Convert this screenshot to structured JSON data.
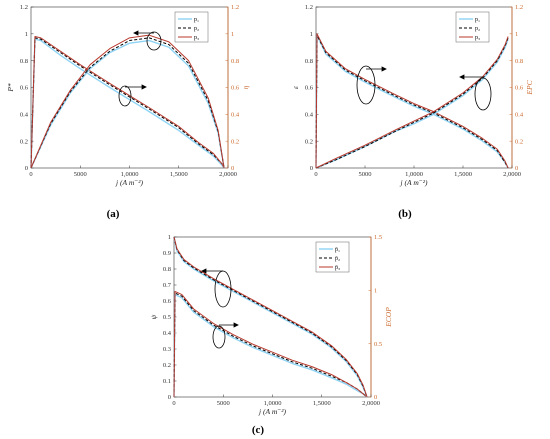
{
  "chart_data": [
    {
      "type": "line",
      "panel_label": "(a)",
      "xlabel": "j (A m⁻²)",
      "ylabel_left": "P*",
      "ylabel_right": "η",
      "xlim": [
        0,
        20000
      ],
      "ylim_left": [
        0,
        1.2
      ],
      "ylim_right": [
        0,
        1.2
      ],
      "x_tick_labels": [
        "0",
        "5000",
        "1,0000",
        "1,5000",
        "2,0000"
      ],
      "y_left_tick_labels": [
        "0",
        "0.2",
        "0.4",
        "0.6",
        "0.8",
        "1",
        "1.2"
      ],
      "y_right_tick_labels": [
        "0",
        "0.2",
        "0.4",
        "0.6",
        "0.8",
        "1",
        "1.2"
      ],
      "legend": [
        "p₁",
        "p₂",
        "p₃"
      ],
      "legend_position": "top-right",
      "series": [
        {
          "name": "p₁",
          "axis": "left",
          "x": [
            0,
            400,
            1000,
            3000,
            5000,
            8000,
            10000,
            12000,
            15000,
            17000,
            18500,
            19400,
            19600
          ],
          "y": [
            0,
            0.96,
            0.95,
            0.84,
            0.74,
            0.6,
            0.51,
            0.42,
            0.28,
            0.17,
            0.09,
            0.02,
            0
          ]
        },
        {
          "name": "p₂",
          "axis": "left",
          "x": [
            0,
            400,
            1000,
            3000,
            5000,
            8000,
            10000,
            12000,
            15000,
            17000,
            18500,
            19400,
            19600
          ],
          "y": [
            0,
            0.97,
            0.96,
            0.86,
            0.76,
            0.62,
            0.53,
            0.44,
            0.3,
            0.18,
            0.1,
            0.03,
            0
          ]
        },
        {
          "name": "p₃",
          "axis": "left",
          "x": [
            0,
            400,
            1000,
            3000,
            5000,
            8000,
            10000,
            12000,
            15000,
            17000,
            18500,
            19400,
            19600
          ],
          "y": [
            0,
            0.98,
            0.97,
            0.87,
            0.77,
            0.63,
            0.54,
            0.45,
            0.31,
            0.19,
            0.11,
            0.03,
            0
          ]
        },
        {
          "name": "p₁",
          "axis": "right",
          "x": [
            0,
            2000,
            4000,
            6000,
            8000,
            10000,
            12000,
            14000,
            16000,
            18000,
            19000,
            19600
          ],
          "y": [
            0,
            0.32,
            0.56,
            0.74,
            0.86,
            0.93,
            0.95,
            0.9,
            0.76,
            0.48,
            0.26,
            0
          ]
        },
        {
          "name": "p₂",
          "axis": "right",
          "x": [
            0,
            2000,
            4000,
            6000,
            8000,
            10000,
            12000,
            14000,
            16000,
            18000,
            19000,
            19600
          ],
          "y": [
            0,
            0.33,
            0.57,
            0.75,
            0.87,
            0.95,
            0.97,
            0.92,
            0.78,
            0.5,
            0.27,
            0
          ]
        },
        {
          "name": "p₃",
          "axis": "right",
          "x": [
            0,
            2000,
            4000,
            6000,
            8000,
            10000,
            12000,
            14000,
            16000,
            18000,
            19000,
            19600
          ],
          "y": [
            0,
            0.34,
            0.58,
            0.77,
            0.89,
            0.97,
            0.99,
            0.94,
            0.8,
            0.52,
            0.28,
            0
          ]
        }
      ]
    },
    {
      "type": "line",
      "panel_label": "(b)",
      "xlabel": "j (A m⁻²)",
      "ylabel_left": "ε",
      "ylabel_right": "EPC",
      "xlim": [
        0,
        20000
      ],
      "ylim_left": [
        0,
        1.2
      ],
      "ylim_right": [
        0,
        1.2
      ],
      "x_tick_labels": [
        "0",
        "5000",
        "1,0000",
        "1,5000",
        "2,0000"
      ],
      "y_left_tick_labels": [
        "0",
        "0.2",
        "0.4",
        "0.6",
        "0.8",
        "1",
        "1.2"
      ],
      "y_right_tick_labels": [
        "0",
        "0.2",
        "0.4",
        "0.6",
        "0.8",
        "1",
        "1.2"
      ],
      "legend": [
        "p₁",
        "p₂",
        "p₃"
      ],
      "legend_position": "top-right",
      "series": [
        {
          "name": "p₁",
          "axis": "left",
          "x": [
            0,
            100,
            1000,
            3000,
            5000,
            8000,
            10000,
            12000,
            15000,
            17000,
            18500,
            19300,
            19600
          ],
          "y": [
            0,
            0.99,
            0.85,
            0.72,
            0.64,
            0.53,
            0.46,
            0.4,
            0.29,
            0.2,
            0.12,
            0.04,
            0
          ]
        },
        {
          "name": "p₂",
          "axis": "left",
          "x": [
            0,
            100,
            1000,
            3000,
            5000,
            8000,
            10000,
            12000,
            15000,
            17000,
            18500,
            19300,
            19600
          ],
          "y": [
            0,
            0.99,
            0.86,
            0.73,
            0.65,
            0.54,
            0.47,
            0.41,
            0.3,
            0.21,
            0.13,
            0.04,
            0
          ]
        },
        {
          "name": "p₃",
          "axis": "left",
          "x": [
            0,
            100,
            1000,
            3000,
            5000,
            8000,
            10000,
            12000,
            15000,
            17000,
            18500,
            19300,
            19600
          ],
          "y": [
            0,
            1.0,
            0.87,
            0.74,
            0.66,
            0.55,
            0.48,
            0.42,
            0.31,
            0.22,
            0.14,
            0.05,
            0
          ]
        },
        {
          "name": "p₁",
          "axis": "right",
          "x": [
            0,
            2000,
            5000,
            8000,
            10000,
            12000,
            15000,
            17000,
            18500,
            19300,
            19600
          ],
          "y": [
            0,
            0.06,
            0.16,
            0.27,
            0.33,
            0.4,
            0.54,
            0.66,
            0.79,
            0.9,
            0.96
          ]
        },
        {
          "name": "p₂",
          "axis": "right",
          "x": [
            0,
            2000,
            5000,
            8000,
            10000,
            12000,
            15000,
            17000,
            18500,
            19300,
            19600
          ],
          "y": [
            0,
            0.06,
            0.16,
            0.27,
            0.34,
            0.41,
            0.55,
            0.67,
            0.8,
            0.91,
            0.97
          ]
        },
        {
          "name": "p₃",
          "axis": "right",
          "x": [
            0,
            2000,
            5000,
            8000,
            10000,
            12000,
            15000,
            17000,
            18500,
            19300,
            19600
          ],
          "y": [
            0,
            0.07,
            0.17,
            0.28,
            0.35,
            0.42,
            0.56,
            0.68,
            0.81,
            0.92,
            0.98
          ]
        }
      ]
    },
    {
      "type": "line",
      "panel_label": "(c)",
      "xlabel": "j (A m⁻²)",
      "ylabel_left": "ψ",
      "ylabel_right": "ECOP",
      "xlim": [
        0,
        20000
      ],
      "ylim_left": [
        0,
        1
      ],
      "ylim_right": [
        0,
        1.5
      ],
      "x_tick_labels": [
        "0",
        "5000",
        "1,0000",
        "1,5000",
        "2,0000"
      ],
      "y_left_tick_labels": [
        "0",
        "0.1",
        "0.2",
        "0.3",
        "0.4",
        "0.5",
        "0.6",
        "0.7",
        "0.8",
        "0.9",
        "1"
      ],
      "y_right_tick_labels": [
        "0",
        "0.5",
        "1",
        "1.5"
      ],
      "legend": [
        "p̄₁",
        "p̄₂",
        "p̄₃"
      ],
      "legend_position": "top-right",
      "series": [
        {
          "name": "p̄₁",
          "axis": "left",
          "x": [
            0,
            100,
            800,
            2000,
            4000,
            6000,
            8000,
            10000,
            12000,
            14000,
            16000,
            17500,
            18600,
            19200,
            19600
          ],
          "y": [
            0,
            0.64,
            0.62,
            0.53,
            0.44,
            0.37,
            0.31,
            0.26,
            0.21,
            0.17,
            0.12,
            0.08,
            0.04,
            0.02,
            0
          ]
        },
        {
          "name": "p̄₂",
          "axis": "left",
          "x": [
            0,
            100,
            800,
            2000,
            4000,
            6000,
            8000,
            10000,
            12000,
            14000,
            16000,
            17500,
            18600,
            19200,
            19600
          ],
          "y": [
            0,
            0.65,
            0.63,
            0.54,
            0.45,
            0.38,
            0.32,
            0.27,
            0.22,
            0.18,
            0.13,
            0.09,
            0.05,
            0.02,
            0
          ]
        },
        {
          "name": "p̄₃",
          "axis": "left",
          "x": [
            0,
            100,
            800,
            2000,
            4000,
            6000,
            8000,
            10000,
            12000,
            14000,
            16000,
            17500,
            18600,
            19200,
            19600
          ],
          "y": [
            0,
            0.66,
            0.64,
            0.55,
            0.46,
            0.39,
            0.33,
            0.28,
            0.23,
            0.19,
            0.14,
            0.09,
            0.05,
            0.02,
            0
          ]
        },
        {
          "name": "p̄₁",
          "axis": "right",
          "x": [
            0,
            300,
            1000,
            2000,
            4000,
            6000,
            8000,
            10000,
            12000,
            14000,
            16000,
            17500,
            18600,
            19200,
            19600
          ],
          "y": [
            1.5,
            1.37,
            1.27,
            1.2,
            1.09,
            0.99,
            0.89,
            0.79,
            0.69,
            0.59,
            0.46,
            0.33,
            0.2,
            0.09,
            0
          ]
        },
        {
          "name": "p̄₂",
          "axis": "right",
          "x": [
            0,
            300,
            1000,
            2000,
            4000,
            6000,
            8000,
            10000,
            12000,
            14000,
            16000,
            17500,
            18600,
            19200,
            19600
          ],
          "y": [
            1.5,
            1.38,
            1.28,
            1.21,
            1.1,
            1.0,
            0.9,
            0.8,
            0.7,
            0.6,
            0.47,
            0.34,
            0.21,
            0.1,
            0
          ]
        },
        {
          "name": "p̄₃",
          "axis": "right",
          "x": [
            0,
            300,
            1000,
            2000,
            4000,
            6000,
            8000,
            10000,
            12000,
            14000,
            16000,
            17500,
            18600,
            19200,
            19600
          ],
          "y": [
            1.5,
            1.39,
            1.29,
            1.22,
            1.11,
            1.01,
            0.91,
            0.81,
            0.71,
            0.61,
            0.48,
            0.35,
            0.22,
            0.11,
            0
          ]
        }
      ]
    }
  ],
  "colors": {
    "series": [
      "#8fd3f4",
      "#000000",
      "#b83a2e"
    ],
    "left_axis": "#333333",
    "right_axis": "#cc6a2e"
  }
}
